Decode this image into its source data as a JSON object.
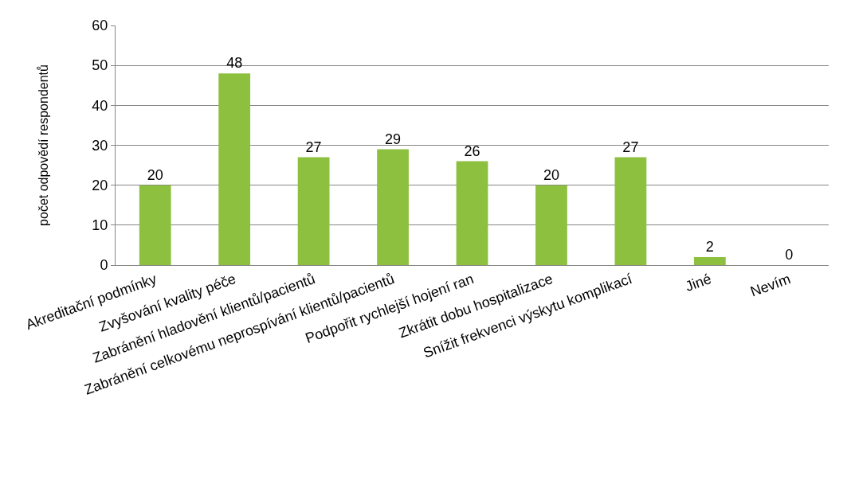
{
  "chart_data": {
    "type": "bar",
    "ylabel": "počet odpovědí respondentů",
    "categories": [
      "Akreditační podmínky",
      "Zvyšování kvality péče",
      "Zabránění hladovění klientů/pacientů",
      "Zabránění celkovému neprospívání klientů/pacientů",
      "Podpořit rychlejší hojení ran",
      "Zkrátit dobu hospitalizace",
      "Snížit frekvenci výskytu komplikací",
      "Jiné",
      "Nevím"
    ],
    "values": [
      20,
      48,
      27,
      29,
      26,
      20,
      27,
      2,
      0
    ],
    "color": "#8dc03f",
    "ylim": [
      0,
      60
    ],
    "yticks": [
      0,
      10,
      20,
      30,
      40,
      50,
      60
    ],
    "grid": "y",
    "data_labels": true
  }
}
